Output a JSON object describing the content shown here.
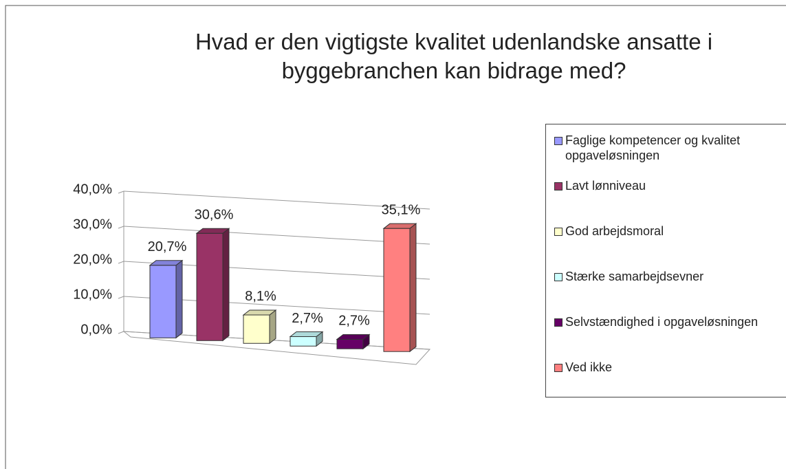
{
  "chart_data": {
    "type": "bar3d",
    "title": "Hvad er den vigtigste kvalitet udenlandske ansatte i byggebranchen kan bidrage med?",
    "ylim": [
      0,
      40
    ],
    "yticks": [
      {
        "value": 0,
        "label": "0,0%"
      },
      {
        "value": 10,
        "label": "10,0%"
      },
      {
        "value": 20,
        "label": "20,0%"
      },
      {
        "value": 30,
        "label": "30,0%"
      },
      {
        "value": 40,
        "label": "40,0%"
      }
    ],
    "grid": true,
    "legend": "right",
    "series": [
      {
        "name": "Faglige kompetencer og kvalitet opgaveløsningen",
        "color": "#9999ff",
        "values": [
          20.7
        ],
        "value_labels": [
          "20,7%"
        ]
      },
      {
        "name": "Lavt lønniveau",
        "color": "#993366",
        "values": [
          30.6
        ],
        "value_labels": [
          "30,6%"
        ]
      },
      {
        "name": "God arbejdsmoral",
        "color": "#ffffcc",
        "values": [
          8.1
        ],
        "value_labels": [
          "8,1%"
        ]
      },
      {
        "name": "Stærke samarbejdsevner",
        "color": "#ccffff",
        "values": [
          2.7
        ],
        "value_labels": [
          "2,7%"
        ]
      },
      {
        "name": "Selvstændighed i opgaveløsningen",
        "color": "#660066",
        "values": [
          2.7
        ],
        "value_labels": [
          "2,7%"
        ]
      },
      {
        "name": "Ved ikke",
        "color": "#ff8080",
        "values": [
          35.1
        ],
        "value_labels": [
          "35,1%"
        ]
      }
    ]
  }
}
